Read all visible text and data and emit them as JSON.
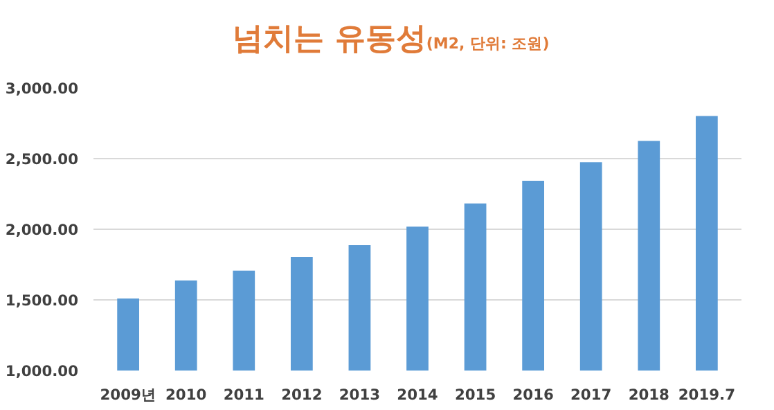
{
  "chart_data": {
    "type": "bar",
    "title": "넘치는 유동성",
    "subtitle": "(M2, 단위: 조원)",
    "categories": [
      "2009년",
      "2010",
      "2011",
      "2012",
      "2013",
      "2014",
      "2015",
      "2016",
      "2017",
      "2018",
      "2019.7"
    ],
    "values": [
      1510,
      1637,
      1707,
      1804,
      1887,
      2018,
      2182,
      2343,
      2474,
      2625,
      2801
    ],
    "color": "#5b9bd5",
    "ylim": [
      1000,
      3000
    ],
    "yticks": [
      {
        "value": 1000,
        "label": "1,000.00"
      },
      {
        "value": 1500,
        "label": "1,500.00"
      },
      {
        "value": 2000,
        "label": "2,000.00"
      },
      {
        "value": 2500,
        "label": "2,500.00"
      },
      {
        "value": 3000,
        "label": "3,000.00"
      }
    ],
    "grid": "y"
  }
}
